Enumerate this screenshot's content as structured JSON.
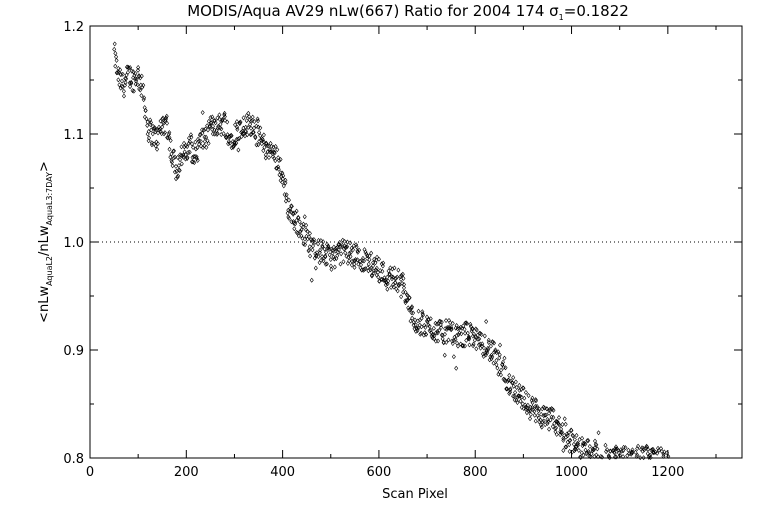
{
  "chart_data": {
    "type": "scatter",
    "title": "MODIS/Aqua AV29 nLw(667) Ratio for 2004 174 σ",
    "title_sigma_sub": "1",
    "title_value": "=0.1822",
    "xlabel": "Scan Pixel",
    "ylabel": {
      "lt": "<",
      "main1": "nLw",
      "sub1": "AquaL2",
      "slash": "/",
      "main2": "nLw",
      "sub2": "AquaL3:7DAY",
      "gt": ">"
    },
    "xlim": [
      0,
      1354
    ],
    "ylim": [
      0.8,
      1.2
    ],
    "xticks": [
      0,
      200,
      400,
      600,
      800,
      1000,
      1200
    ],
    "yticks": [
      0.8,
      0.9,
      1.0,
      1.1,
      1.2
    ],
    "xtick_labels": [
      "0",
      "200",
      "400",
      "600",
      "800",
      "1000",
      "1200"
    ],
    "ytick_labels": [
      "0.8",
      "0.9",
      "1.0",
      "1.1",
      "1.2"
    ],
    "reference_line": {
      "y": 1.0,
      "style": "dotted"
    },
    "marker": "diamond",
    "grid": false,
    "series": [
      {
        "x_start": 50,
        "x_end": 1200,
        "x_step": 10,
        "y_trend": [
          1.175,
          1.15,
          1.145,
          1.155,
          1.15,
          1.155,
          1.14,
          1.105,
          1.1,
          1.095,
          1.11,
          1.11,
          1.08,
          1.068,
          1.08,
          1.082,
          1.09,
          1.08,
          1.095,
          1.095,
          1.105,
          1.11,
          1.108,
          1.112,
          1.095,
          1.1,
          1.105,
          1.108,
          1.11,
          1.11,
          1.1,
          1.09,
          1.085,
          1.082,
          1.078,
          1.06,
          1.035,
          1.025,
          1.018,
          1.012,
          1.005,
          0.995,
          0.99,
          0.992,
          0.988,
          0.985,
          0.988,
          0.99,
          0.992,
          0.99,
          0.985,
          0.985,
          0.983,
          0.98,
          0.978,
          0.975,
          0.97,
          0.965,
          0.968,
          0.965,
          0.96,
          0.945,
          0.93,
          0.925,
          0.925,
          0.922,
          0.92,
          0.918,
          0.915,
          0.918,
          0.915,
          0.912,
          0.912,
          0.915,
          0.915,
          0.91,
          0.905,
          0.905,
          0.9,
          0.895,
          0.885,
          0.875,
          0.87,
          0.865,
          0.86,
          0.855,
          0.848,
          0.845,
          0.842,
          0.838,
          0.835,
          0.835,
          0.83,
          0.825,
          0.82,
          0.815,
          0.81,
          0.808,
          0.806,
          0.805,
          0.803,
          0.802,
          0.801,
          0.8,
          0.8,
          0.8,
          0.8,
          0.8,
          0.8,
          0.8,
          0.8,
          0.8,
          0.8,
          0.8,
          0.8,
          0.8
        ]
      }
    ]
  }
}
